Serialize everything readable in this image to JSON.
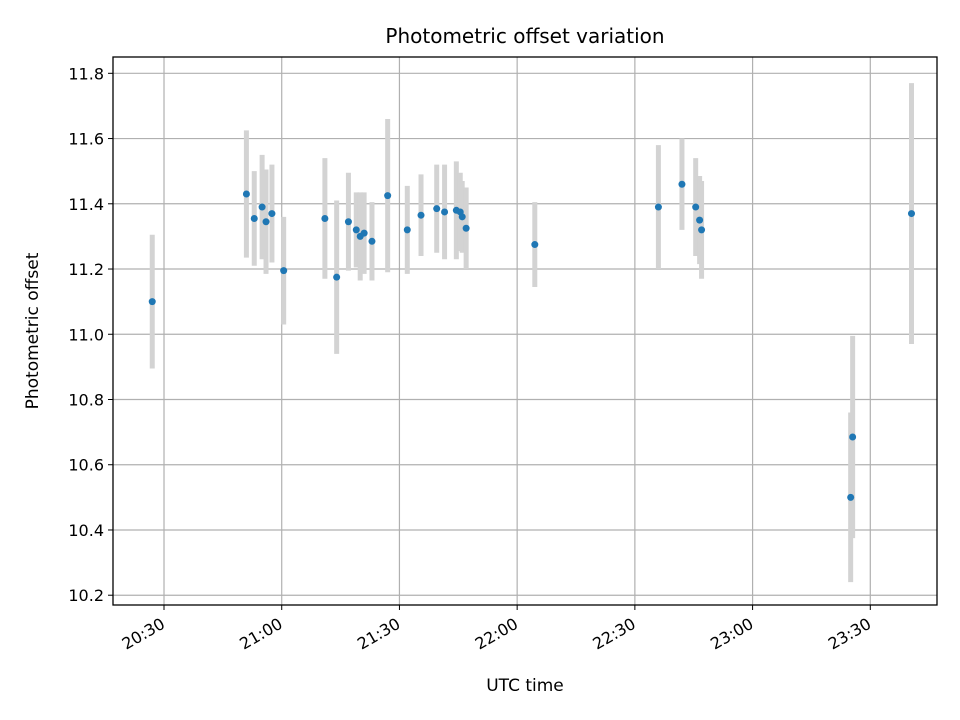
{
  "chart_data": {
    "type": "scatter",
    "title": "Photometric offset variation",
    "xlabel": "UTC time",
    "ylabel": "Photometric offset",
    "x_is_time": true,
    "xlim": [
      "20:17",
      "23:47"
    ],
    "ylim": [
      10.17,
      11.85
    ],
    "x_ticks": [
      "20:30",
      "21:00",
      "21:30",
      "22:00",
      "22:30",
      "23:00",
      "23:30"
    ],
    "y_ticks": [
      "10.2",
      "10.4",
      "10.6",
      "10.8",
      "11.0",
      "11.2",
      "11.4",
      "11.6",
      "11.8"
    ],
    "grid": true,
    "colors": {
      "points": "#1f77b4",
      "error_bars": "#d3d3d3",
      "grid": "#b0b0b0"
    },
    "series": [
      {
        "points": [
          {
            "x": "20:27",
            "y": 11.1,
            "err": 0.205
          },
          {
            "x": "20:51",
            "y": 11.43,
            "err": 0.195
          },
          {
            "x": "20:53",
            "y": 11.355,
            "err": 0.145
          },
          {
            "x": "20:55",
            "y": 11.39,
            "err": 0.16
          },
          {
            "x": "20:56",
            "y": 11.345,
            "err": 0.16
          },
          {
            "x": "20:57.5",
            "y": 11.37,
            "err": 0.15
          },
          {
            "x": "21:00.5",
            "y": 11.195,
            "err": 0.165
          },
          {
            "x": "21:11",
            "y": 11.355,
            "err": 0.185
          },
          {
            "x": "21:14",
            "y": 11.175,
            "err": 0.235
          },
          {
            "x": "21:17",
            "y": 11.345,
            "err": 0.15
          },
          {
            "x": "21:19",
            "y": 11.32,
            "err": 0.115
          },
          {
            "x": "21:20",
            "y": 11.3,
            "err": 0.135
          },
          {
            "x": "21:21",
            "y": 11.31,
            "err": 0.125
          },
          {
            "x": "21:23",
            "y": 11.285,
            "err": 0.12
          },
          {
            "x": "21:27",
            "y": 11.425,
            "err": 0.235
          },
          {
            "x": "21:32",
            "y": 11.32,
            "err": 0.135
          },
          {
            "x": "21:35.5",
            "y": 11.365,
            "err": 0.125
          },
          {
            "x": "21:39.5",
            "y": 11.385,
            "err": 0.135
          },
          {
            "x": "21:41.5",
            "y": 11.375,
            "err": 0.145
          },
          {
            "x": "21:44.5",
            "y": 11.38,
            "err": 0.15
          },
          {
            "x": "21:45.5",
            "y": 11.375,
            "err": 0.12
          },
          {
            "x": "21:46",
            "y": 11.36,
            "err": 0.11
          },
          {
            "x": "21:47",
            "y": 11.325,
            "err": 0.125
          },
          {
            "x": "22:04.5",
            "y": 11.275,
            "err": 0.13
          },
          {
            "x": "22:36",
            "y": 11.39,
            "err": 0.19
          },
          {
            "x": "22:42",
            "y": 11.46,
            "err": 0.14
          },
          {
            "x": "22:45.5",
            "y": 11.39,
            "err": 0.15
          },
          {
            "x": "22:46.5",
            "y": 11.35,
            "err": 0.135
          },
          {
            "x": "22:47",
            "y": 11.32,
            "err": 0.15
          },
          {
            "x": "23:25",
            "y": 10.5,
            "err": 0.26
          },
          {
            "x": "23:25.5",
            "y": 10.685,
            "err": 0.31
          },
          {
            "x": "23:40.5",
            "y": 11.37,
            "err": 0.4
          }
        ]
      }
    ]
  }
}
